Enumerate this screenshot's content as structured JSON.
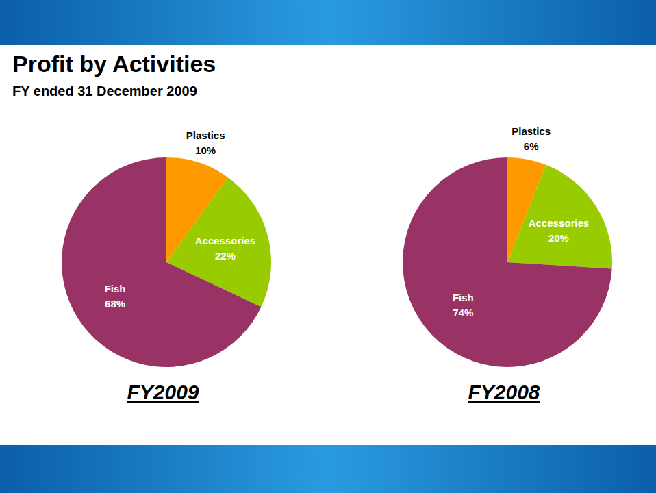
{
  "title": "Profit by Activities",
  "subtitle": "FY ended 31 December 2009",
  "chart_data": [
    {
      "type": "pie",
      "title": "FY2009",
      "categories": [
        "Plastics",
        "Accessories",
        "Fish"
      ],
      "values": [
        10,
        22,
        68
      ],
      "value_labels": [
        "10%",
        "22%",
        "68%"
      ],
      "colors": [
        "#ff9900",
        "#99cc00",
        "#993366"
      ],
      "data_labels": true
    },
    {
      "type": "pie",
      "title": "FY2008",
      "categories": [
        "Plastics",
        "Accessories",
        "Fish"
      ],
      "values": [
        6,
        20,
        74
      ],
      "value_labels": [
        "6%",
        "20%",
        "74%"
      ],
      "colors": [
        "#ff9900",
        "#99cc00",
        "#993366"
      ],
      "data_labels": true
    }
  ]
}
